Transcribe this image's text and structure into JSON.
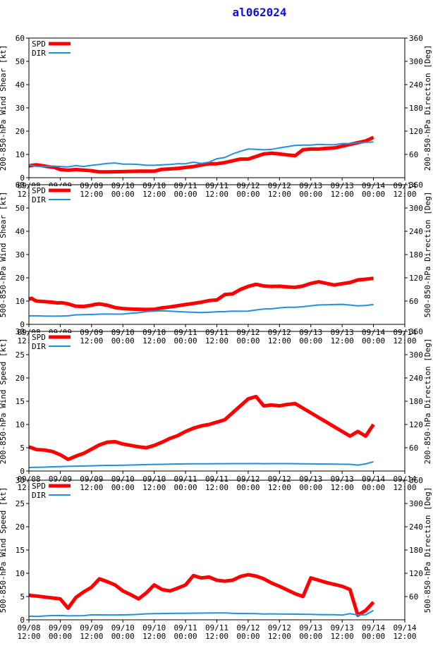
{
  "title": "al062024",
  "colors": {
    "spd": "#ff0000",
    "dir": "#2090e0",
    "title": "#1010d8"
  },
  "chart_data": [
    {
      "type": "line",
      "ylabel": "200-850-hPa Wind Shear [kt]",
      "y2label": "200-850-hPa Direction [Deg]",
      "ylim": [
        0,
        60
      ],
      "yticks": [
        0,
        10,
        20,
        30,
        40,
        50,
        60
      ],
      "y2lim": [
        0,
        360
      ],
      "y2ticks": [
        60,
        120,
        180,
        240,
        300,
        360
      ],
      "xlim": [
        0,
        144
      ],
      "xticks": [
        0,
        12,
        24,
        36,
        48,
        60,
        72,
        84,
        96,
        108,
        120,
        132,
        144
      ],
      "xticklabels": [
        [
          "09/08",
          "12:00"
        ],
        [
          "09/09",
          "00:00"
        ],
        [
          "09/09",
          "12:00"
        ],
        [
          "09/10",
          "00:00"
        ],
        [
          "09/10",
          "12:00"
        ],
        [
          "09/11",
          "00:00"
        ],
        [
          "09/11",
          "12:00"
        ],
        [
          "09/12",
          "00:00"
        ],
        [
          "09/12",
          "12:00"
        ],
        [
          "09/13",
          "00:00"
        ],
        [
          "09/13",
          "12:00"
        ],
        [
          "09/14",
          "00:00"
        ],
        [
          "09/14",
          "12:00"
        ]
      ],
      "legend": [
        "SPD",
        "DIR"
      ],
      "series": [
        {
          "name": "SPD",
          "axis": "left",
          "x": [
            0,
            1,
            3,
            6,
            7,
            9,
            9.5,
            12,
            15,
            18,
            24,
            27,
            30,
            36,
            42,
            48,
            51,
            51.5,
            57,
            63,
            63.5,
            69,
            72,
            75,
            81,
            84,
            90,
            93,
            96,
            99,
            102,
            105,
            108,
            111,
            114,
            117,
            123,
            129,
            132
          ],
          "y": [
            5,
            5.3,
            5.5,
            5,
            4.8,
            4.5,
            4.5,
            3.5,
            3.2,
            3.5,
            3,
            2.5,
            2.5,
            2.6,
            2.8,
            2.8,
            3.6,
            3.6,
            4,
            4.8,
            4.9,
            6,
            6,
            6.5,
            8,
            8,
            10.2,
            10.5,
            10.2,
            9.8,
            9.5,
            12,
            12.3,
            12.3,
            12.6,
            12.8,
            14.3,
            15.8,
            17.3
          ]
        },
        {
          "name": "DIR",
          "axis": "right",
          "x": [
            0,
            1,
            3,
            6,
            9,
            12,
            14,
            15,
            18,
            21,
            24,
            27,
            30,
            33,
            36,
            39,
            42,
            45,
            48,
            51,
            54,
            57,
            60,
            63,
            66,
            69,
            72,
            75,
            78,
            81,
            84,
            87,
            90,
            93,
            96,
            99,
            102,
            105,
            108,
            111,
            114,
            117,
            120,
            123,
            126,
            129,
            132
          ],
          "y": [
            33,
            32,
            29,
            29,
            30,
            29,
            28,
            28,
            31,
            29,
            32,
            34,
            37,
            38,
            35,
            35,
            34,
            32,
            32,
            33,
            34,
            36,
            36,
            40,
            37,
            40,
            49,
            52,
            61,
            68,
            74,
            73,
            72,
            73,
            77,
            80,
            83,
            84,
            84,
            86,
            85,
            85,
            88,
            88,
            90,
            91,
            92
          ]
        }
      ]
    },
    {
      "type": "line",
      "ylabel": "500-850-hPa Wind Shear [kt]",
      "y2label": "500-850-hPa Direction [Deg]",
      "ylim": [
        0,
        60
      ],
      "yticks": [
        0,
        10,
        20,
        30,
        40,
        50,
        60
      ],
      "y2lim": [
        0,
        360
      ],
      "y2ticks": [
        60,
        120,
        180,
        240,
        300,
        360
      ],
      "xlim": [
        0,
        144
      ],
      "xticks": [
        0,
        12,
        24,
        36,
        48,
        60,
        72,
        84,
        96,
        108,
        120,
        132,
        144
      ],
      "xticklabels": [
        [
          "09/08",
          "12:00"
        ],
        [
          "09/09",
          "00:00"
        ],
        [
          "09/09",
          "12:00"
        ],
        [
          "09/10",
          "00:00"
        ],
        [
          "09/10",
          "12:00"
        ],
        [
          "09/11",
          "00:00"
        ],
        [
          "09/11",
          "12:00"
        ],
        [
          "09/12",
          "00:00"
        ],
        [
          "09/12",
          "12:00"
        ],
        [
          "09/13",
          "00:00"
        ],
        [
          "09/13",
          "12:00"
        ],
        [
          "09/14",
          "00:00"
        ],
        [
          "09/14",
          "12:00"
        ]
      ],
      "legend": [
        "SPD",
        "DIR"
      ],
      "series": [
        {
          "name": "SPD",
          "axis": "left",
          "x": [
            0,
            1,
            2,
            3,
            6,
            9,
            11,
            12,
            13,
            15,
            18,
            21,
            24,
            25,
            27,
            30,
            33,
            36,
            39,
            42,
            45,
            48,
            51,
            54,
            57,
            60,
            63,
            66,
            69,
            72,
            75,
            78,
            81,
            84,
            87,
            90,
            93,
            96,
            99,
            102,
            105,
            108,
            111,
            114,
            117,
            120,
            123,
            126,
            129,
            132
          ],
          "y": [
            10.8,
            11.2,
            10.5,
            10,
            9.8,
            9.5,
            9.2,
            9.3,
            9.2,
            8.8,
            7.8,
            7.7,
            8.2,
            8.5,
            8.8,
            8.2,
            7.2,
            6.8,
            6.6,
            6.5,
            6.4,
            6.5,
            7.1,
            7.5,
            8,
            8.5,
            9,
            9.5,
            10.2,
            10.5,
            12.8,
            13.1,
            15,
            16.3,
            17.2,
            16.5,
            16.3,
            16.4,
            16.1,
            15.9,
            16.5,
            17.6,
            18.3,
            17.6,
            16.9,
            17.5,
            18,
            19.1,
            19.4,
            19.8
          ]
        },
        {
          "name": "DIR",
          "axis": "right",
          "x": [
            0,
            1,
            3,
            6,
            9,
            12,
            15,
            18,
            21,
            24,
            27,
            30,
            33,
            36,
            39,
            42,
            45,
            48,
            51,
            54,
            57,
            60,
            63,
            66,
            69,
            72,
            75,
            78,
            81,
            84,
            87,
            90,
            93,
            96,
            99,
            102,
            105,
            108,
            111,
            114,
            117,
            120,
            123,
            126,
            129,
            132
          ],
          "y": [
            21.8,
            22,
            22,
            21.5,
            21,
            21.5,
            22,
            24.5,
            25,
            25.5,
            26.3,
            26.5,
            26.3,
            26.5,
            28.5,
            30,
            33,
            34,
            35,
            34,
            33,
            32,
            31,
            30.5,
            31,
            32.5,
            33,
            34,
            33.8,
            34.2,
            37,
            39.5,
            40.2,
            42.5,
            44,
            44.2,
            45.5,
            48,
            50,
            50.4,
            51,
            51.6,
            49.8,
            47.8,
            48.5,
            51
          ]
        }
      ]
    },
    {
      "type": "line",
      "ylabel": "200-850-hPa Wind Speed [kt]",
      "y2label": "200-850-hPa Direction [Deg]",
      "ylim": [
        0,
        30
      ],
      "yticks": [
        0,
        5,
        10,
        15,
        20,
        25,
        30
      ],
      "y2lim": [
        0,
        360
      ],
      "y2ticks": [
        60,
        120,
        180,
        240,
        300,
        360
      ],
      "xlim": [
        0,
        144
      ],
      "xticks": [
        0,
        12,
        24,
        36,
        48,
        60,
        72,
        84,
        96,
        108,
        120,
        132,
        144
      ],
      "xticklabels": [
        [
          "09/08",
          "12:00"
        ],
        [
          "09/09",
          "00:00"
        ],
        [
          "09/09",
          "12:00"
        ],
        [
          "09/10",
          "00:00"
        ],
        [
          "09/10",
          "12:00"
        ],
        [
          "09/11",
          "00:00"
        ],
        [
          "09/11",
          "12:00"
        ],
        [
          "09/12",
          "00:00"
        ],
        [
          "09/12",
          "12:00"
        ],
        [
          "09/13",
          "00:00"
        ],
        [
          "09/13",
          "12:00"
        ],
        [
          "09/14",
          "00:00"
        ],
        [
          "09/14",
          "12:00"
        ]
      ],
      "legend": [
        "SPD",
        "DIR"
      ],
      "series": [
        {
          "name": "SPD",
          "axis": "left",
          "x": [
            0,
            1,
            3,
            6,
            9,
            12,
            15,
            18,
            21,
            24,
            27,
            30,
            33,
            36,
            39,
            42,
            45,
            48,
            51,
            54,
            57,
            60,
            63,
            66,
            69,
            72,
            75,
            78,
            81,
            84,
            87,
            90,
            93,
            96,
            99,
            102,
            105,
            108,
            111,
            114,
            117,
            120,
            123,
            126,
            129,
            132
          ],
          "y": [
            5.2,
            5,
            4.6,
            4.5,
            4.2,
            3.5,
            2.5,
            3.2,
            3.8,
            4.7,
            5.6,
            6.2,
            6.3,
            5.8,
            5.5,
            5.2,
            5,
            5.5,
            6.2,
            7,
            7.6,
            8.5,
            9.2,
            9.7,
            10,
            10.5,
            11,
            12.5,
            14,
            15.5,
            16,
            14,
            14.2,
            14,
            14.3,
            14.5,
            13.5,
            12.5,
            11.5,
            10.5,
            9.5,
            8.5,
            7.5,
            8.5,
            7.5,
            10
          ]
        },
        {
          "name": "DIR",
          "axis": "right",
          "x": [
            0,
            1,
            3,
            6,
            9,
            12,
            15,
            18,
            21,
            24,
            27,
            30,
            33,
            36,
            39,
            42,
            45,
            48,
            51,
            54,
            57,
            60,
            63,
            66,
            69,
            72,
            75,
            78,
            81,
            84,
            87,
            90,
            93,
            96,
            99,
            102,
            105,
            108,
            111,
            114,
            117,
            120,
            123,
            126,
            129,
            132
          ],
          "y": [
            8.8,
            9.2,
            9.6,
            10,
            11,
            11.5,
            12,
            12.5,
            13,
            13.5,
            14,
            14.5,
            14.6,
            15,
            15.5,
            16,
            16.5,
            17,
            17.3,
            17.8,
            18.1,
            18.3,
            18.5,
            18.7,
            18.8,
            18.9,
            18.9,
            19,
            19.1,
            19.1,
            19.2,
            18.9,
            19,
            19.1,
            19,
            18.9,
            18.5,
            18.3,
            18.1,
            18,
            17.8,
            17.5,
            17.2,
            15.3,
            18.3,
            24
          ]
        }
      ]
    },
    {
      "type": "line",
      "ylabel": "500-850-hPa Wind Speed [kt]",
      "y2label": "500-850-hPa Direction [Deg]",
      "ylim": [
        0,
        30
      ],
      "yticks": [
        0,
        5,
        10,
        15,
        20,
        25,
        30
      ],
      "y2lim": [
        0,
        360
      ],
      "y2ticks": [
        60,
        120,
        180,
        240,
        300,
        360
      ],
      "xlim": [
        0,
        144
      ],
      "xticks": [
        0,
        12,
        24,
        36,
        48,
        60,
        72,
        84,
        96,
        108,
        120,
        132,
        144
      ],
      "xticklabels": [
        [
          "09/08",
          "12:00"
        ],
        [
          "09/09",
          "00:00"
        ],
        [
          "09/09",
          "12:00"
        ],
        [
          "09/10",
          "00:00"
        ],
        [
          "09/10",
          "12:00"
        ],
        [
          "09/11",
          "00:00"
        ],
        [
          "09/11",
          "12:00"
        ],
        [
          "09/12",
          "00:00"
        ],
        [
          "09/12",
          "12:00"
        ],
        [
          "09/13",
          "00:00"
        ],
        [
          "09/13",
          "12:00"
        ],
        [
          "09/14",
          "00:00"
        ],
        [
          "09/14",
          "12:00"
        ]
      ],
      "legend": [
        "SPD",
        "DIR"
      ],
      "series": [
        {
          "name": "SPD",
          "axis": "left",
          "x": [
            0,
            1,
            3,
            6,
            9,
            12,
            15,
            18,
            21,
            24,
            27,
            30,
            33,
            36,
            39,
            42,
            45,
            48,
            51,
            54,
            57,
            60,
            63,
            66,
            69,
            72,
            75,
            78,
            81,
            84,
            87,
            90,
            93,
            96,
            99,
            102,
            105,
            108,
            111,
            114,
            117,
            120,
            123,
            126,
            129,
            132
          ],
          "y": [
            5.3,
            5.2,
            5.1,
            4.9,
            4.7,
            4.5,
            2.5,
            4.8,
            6,
            7,
            8.8,
            8.2,
            7.5,
            6.2,
            5.4,
            4.5,
            5.8,
            7.5,
            6.5,
            6.2,
            6.8,
            7.5,
            9.5,
            9,
            9.2,
            8.5,
            8.3,
            8.5,
            9.3,
            9.7,
            9.4,
            8.8,
            7.9,
            7.2,
            6.4,
            5.6,
            5,
            9,
            8.5,
            8,
            7.6,
            7.2,
            6.5,
            1,
            2,
            3.8
          ]
        },
        {
          "name": "DIR",
          "axis": "right",
          "x": [
            0,
            1,
            3,
            6,
            9,
            12,
            15,
            18,
            21,
            24,
            27,
            30,
            33,
            36,
            39,
            42,
            45,
            48,
            51,
            54,
            57,
            60,
            63,
            66,
            69,
            72,
            75,
            78,
            81,
            84,
            87,
            90,
            93,
            96,
            99,
            102,
            105,
            108,
            111,
            114,
            117,
            120,
            123,
            126,
            129,
            132
          ],
          "y": [
            8.8,
            9.6,
            8.5,
            10,
            11,
            11.1,
            10.2,
            10.5,
            10.8,
            12.8,
            12.7,
            12.6,
            12.6,
            12.7,
            13.2,
            14,
            15.4,
            16,
            16.2,
            16.5,
            16.7,
            16.9,
            17.1,
            17.3,
            17.5,
            17.6,
            17.8,
            16.7,
            16.4,
            16.2,
            16,
            15,
            15.2,
            15,
            14.8,
            14.6,
            14.3,
            14,
            13.5,
            13.3,
            13.1,
            12.2,
            15.8,
            12.6,
            13,
            24.2
          ]
        }
      ]
    }
  ]
}
